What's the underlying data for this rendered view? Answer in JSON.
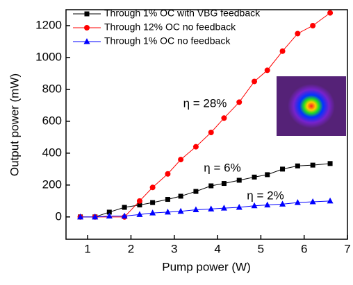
{
  "chart_data": {
    "type": "line",
    "xlabel": "Pump power (W)",
    "ylabel": "Output power (mW)",
    "xlim": [
      0.5,
      7
    ],
    "xticks": [
      1,
      2,
      3,
      4,
      5,
      6,
      7
    ],
    "ylim": [
      -140,
      1300
    ],
    "yticks": [
      0,
      200,
      400,
      600,
      800,
      1000,
      1200
    ],
    "legend": "upper-left",
    "series": [
      {
        "name": "Through 1% OC with VBG feedback",
        "color": "#000000",
        "marker": "square",
        "x": [
          0.83,
          1.17,
          1.5,
          1.85,
          2.2,
          2.5,
          2.85,
          3.15,
          3.5,
          3.85,
          4.15,
          4.5,
          4.85,
          5.15,
          5.5,
          5.85,
          6.2,
          6.6
        ],
        "values": [
          0,
          0,
          30,
          60,
          75,
          90,
          110,
          130,
          160,
          195,
          210,
          230,
          250,
          265,
          300,
          320,
          325,
          335
        ]
      },
      {
        "name": "Through 12% OC no feedback",
        "color": "#ff0000",
        "marker": "circle",
        "x": [
          0.83,
          1.17,
          1.85,
          2.2,
          2.5,
          2.85,
          3.15,
          3.5,
          3.85,
          4.15,
          4.5,
          4.85,
          5.15,
          5.5,
          5.85,
          6.2,
          6.6
        ],
        "values": [
          0,
          0,
          0,
          100,
          185,
          270,
          360,
          440,
          530,
          620,
          720,
          850,
          920,
          1040,
          1150,
          1200,
          1280
        ]
      },
      {
        "name": "Through 1% OC no feedback",
        "color": "#0000ff",
        "marker": "triangle",
        "x": [
          0.83,
          1.17,
          1.5,
          1.85,
          2.2,
          2.5,
          2.85,
          3.15,
          3.5,
          3.85,
          4.15,
          4.5,
          4.85,
          5.15,
          5.5,
          5.85,
          6.2,
          6.6
        ],
        "values": [
          0,
          0,
          5,
          5,
          15,
          25,
          30,
          35,
          45,
          50,
          55,
          60,
          70,
          75,
          80,
          90,
          95,
          100
        ]
      }
    ],
    "annotations": [
      "η = 28%",
      "η = 6%",
      "η = 2%"
    ]
  }
}
